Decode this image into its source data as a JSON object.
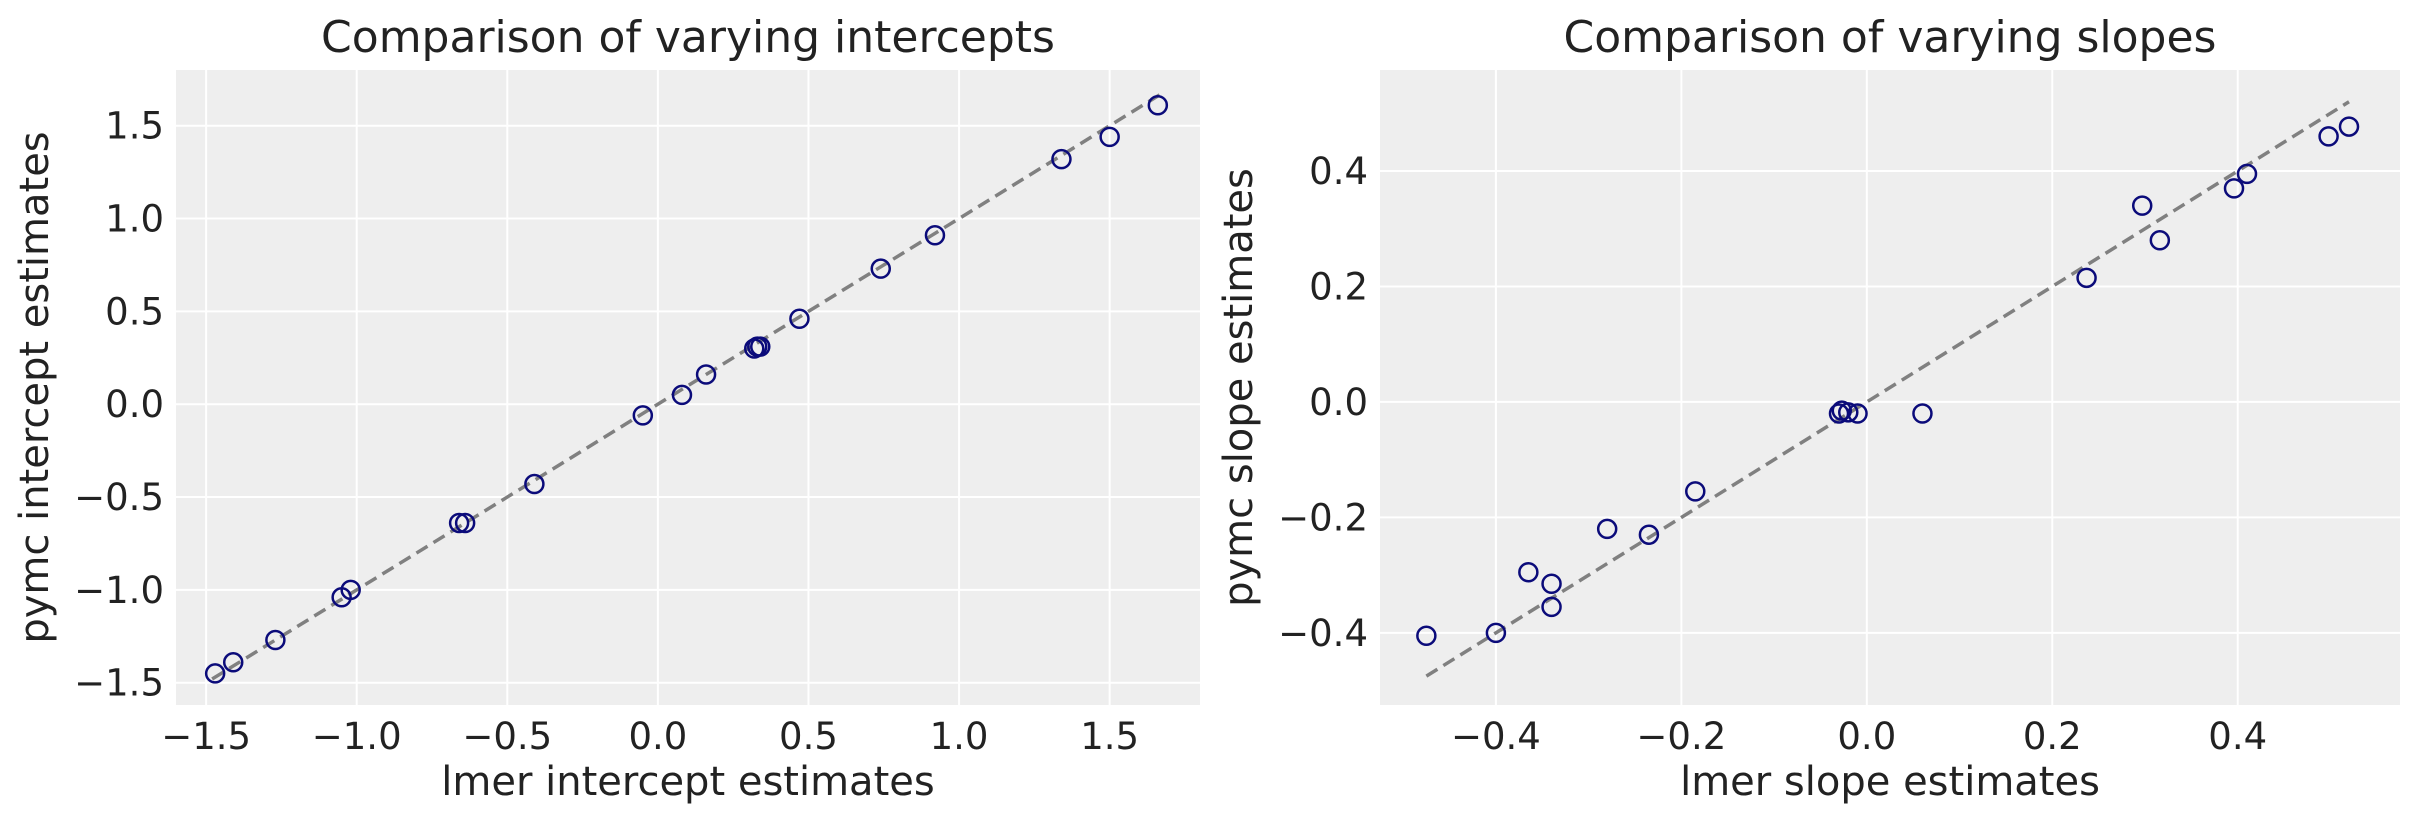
{
  "colors": {
    "marker": "#0b0b7a",
    "reference_line": "#808080",
    "panel_background": "#eeeeee",
    "grid": "#ffffff"
  },
  "chart_data": [
    {
      "type": "scatter",
      "title": "Comparison of varying intercepts",
      "xlabel": "lmer intercept estimates",
      "ylabel": "pymc intercept estimates",
      "xlim": [
        -1.6,
        1.8
      ],
      "ylim": [
        -1.62,
        1.8
      ],
      "xticks": [
        -1.5,
        -1.0,
        -0.5,
        0.0,
        0.5,
        1.0,
        1.5
      ],
      "yticks": [
        -1.5,
        -1.0,
        -0.5,
        0.0,
        0.5,
        1.0,
        1.5
      ],
      "xtick_labels": [
        "−1.5",
        "−1.0",
        "−0.5",
        "0.0",
        "0.5",
        "1.0",
        "1.5"
      ],
      "ytick_labels": [
        "−1.5",
        "−1.0",
        "−0.5",
        "0.0",
        "0.5",
        "1.0",
        "1.5"
      ],
      "grid": true,
      "reference_line": {
        "x": [
          -1.48,
          1.67
        ],
        "y": [
          -1.48,
          1.67
        ],
        "style": "dashed"
      },
      "x": [
        -1.47,
        -1.41,
        -1.27,
        -1.05,
        -1.02,
        -0.66,
        -0.64,
        -0.41,
        -0.05,
        0.08,
        0.16,
        0.32,
        0.33,
        0.34,
        0.47,
        0.74,
        0.92,
        1.34,
        1.5,
        1.66
      ],
      "y": [
        -1.45,
        -1.39,
        -1.27,
        -1.04,
        -1.0,
        -0.64,
        -0.64,
        -0.43,
        -0.06,
        0.05,
        0.16,
        0.3,
        0.31,
        0.31,
        0.46,
        0.73,
        0.91,
        1.32,
        1.44,
        1.61
      ]
    },
    {
      "type": "scatter",
      "title": "Comparison of varying slopes",
      "xlabel": "lmer slope estimates",
      "ylabel": "pymc slope estimates",
      "xlim": [
        -0.525,
        0.575
      ],
      "ylim": [
        -0.525,
        0.575
      ],
      "xticks": [
        -0.4,
        -0.2,
        0.0,
        0.2,
        0.4
      ],
      "yticks": [
        -0.4,
        -0.2,
        0.0,
        0.2,
        0.4
      ],
      "xtick_labels": [
        "−0.4",
        "−0.2",
        "0.0",
        "0.2",
        "0.4"
      ],
      "ytick_labels": [
        "−0.4",
        "−0.2",
        "0.0",
        "0.2",
        "0.4"
      ],
      "grid": true,
      "reference_line": {
        "x": [
          -0.475,
          0.52
        ],
        "y": [
          -0.475,
          0.52
        ],
        "style": "dashed"
      },
      "x": [
        -0.475,
        -0.4,
        -0.365,
        -0.34,
        -0.34,
        -0.28,
        -0.235,
        -0.185,
        -0.03,
        -0.027,
        -0.02,
        -0.01,
        0.06,
        0.237,
        0.297,
        0.316,
        0.396,
        0.41,
        0.498,
        0.52
      ],
      "y": [
        -0.405,
        -0.4,
        -0.295,
        -0.315,
        -0.355,
        -0.22,
        -0.23,
        -0.155,
        -0.02,
        -0.015,
        -0.018,
        -0.02,
        -0.02,
        0.215,
        0.34,
        0.28,
        0.37,
        0.395,
        0.46,
        0.477
      ]
    }
  ]
}
